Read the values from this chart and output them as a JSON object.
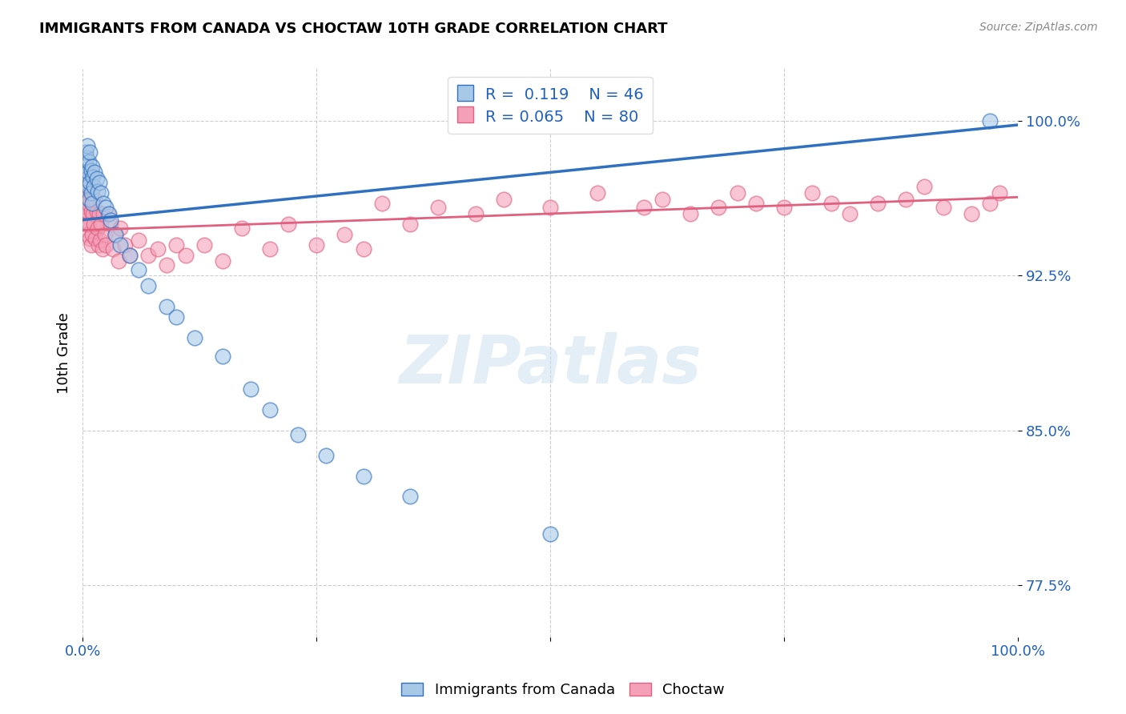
{
  "title": "IMMIGRANTS FROM CANADA VS CHOCTAW 10TH GRADE CORRELATION CHART",
  "source": "Source: ZipAtlas.com",
  "ylabel": "10th Grade",
  "legend_blue_label": "Immigrants from Canada",
  "legend_pink_label": "Choctaw",
  "R_blue": 0.119,
  "N_blue": 46,
  "R_pink": 0.065,
  "N_pink": 80,
  "blue_color": "#a8c8e8",
  "pink_color": "#f4a0b8",
  "blue_line_color": "#3070c0",
  "pink_line_color": "#e06080",
  "background_color": "#ffffff",
  "watermark_text": "ZIPatlas",
  "blue_scatter_x": [
    0.001,
    0.002,
    0.003,
    0.003,
    0.004,
    0.004,
    0.005,
    0.005,
    0.006,
    0.006,
    0.007,
    0.007,
    0.008,
    0.008,
    0.009,
    0.009,
    0.01,
    0.01,
    0.011,
    0.012,
    0.013,
    0.015,
    0.016,
    0.018,
    0.02,
    0.022,
    0.025,
    0.028,
    0.03,
    0.035,
    0.04,
    0.05,
    0.06,
    0.07,
    0.09,
    0.1,
    0.12,
    0.15,
    0.18,
    0.2,
    0.23,
    0.26,
    0.3,
    0.35,
    0.5,
    0.97
  ],
  "blue_scatter_y": [
    0.98,
    0.975,
    0.985,
    0.97,
    0.978,
    0.982,
    0.988,
    0.972,
    0.975,
    0.968,
    0.98,
    0.962,
    0.985,
    0.97,
    0.976,
    0.965,
    0.978,
    0.96,
    0.973,
    0.968,
    0.975,
    0.972,
    0.966,
    0.97,
    0.965,
    0.96,
    0.958,
    0.955,
    0.952,
    0.945,
    0.94,
    0.935,
    0.928,
    0.92,
    0.91,
    0.905,
    0.895,
    0.886,
    0.87,
    0.86,
    0.848,
    0.838,
    0.828,
    0.818,
    0.8,
    1.0
  ],
  "pink_scatter_x": [
    0.001,
    0.001,
    0.002,
    0.002,
    0.003,
    0.003,
    0.004,
    0.004,
    0.005,
    0.005,
    0.006,
    0.006,
    0.007,
    0.007,
    0.008,
    0.008,
    0.009,
    0.009,
    0.01,
    0.01,
    0.011,
    0.012,
    0.013,
    0.014,
    0.015,
    0.016,
    0.017,
    0.018,
    0.019,
    0.02,
    0.021,
    0.022,
    0.024,
    0.025,
    0.027,
    0.03,
    0.032,
    0.035,
    0.038,
    0.04,
    0.045,
    0.05,
    0.06,
    0.07,
    0.08,
    0.09,
    0.1,
    0.11,
    0.13,
    0.15,
    0.17,
    0.2,
    0.22,
    0.25,
    0.28,
    0.3,
    0.32,
    0.35,
    0.38,
    0.42,
    0.45,
    0.5,
    0.55,
    0.6,
    0.62,
    0.65,
    0.68,
    0.7,
    0.72,
    0.75,
    0.78,
    0.8,
    0.82,
    0.85,
    0.88,
    0.9,
    0.92,
    0.95,
    0.97,
    0.98
  ],
  "pink_scatter_y": [
    0.975,
    0.96,
    0.97,
    0.955,
    0.968,
    0.952,
    0.965,
    0.95,
    0.972,
    0.956,
    0.96,
    0.945,
    0.968,
    0.95,
    0.962,
    0.943,
    0.956,
    0.94,
    0.962,
    0.945,
    0.955,
    0.95,
    0.962,
    0.943,
    0.956,
    0.948,
    0.94,
    0.955,
    0.942,
    0.95,
    0.938,
    0.955,
    0.945,
    0.94,
    0.955,
    0.95,
    0.938,
    0.945,
    0.932,
    0.948,
    0.94,
    0.935,
    0.942,
    0.935,
    0.938,
    0.93,
    0.94,
    0.935,
    0.94,
    0.932,
    0.948,
    0.938,
    0.95,
    0.94,
    0.945,
    0.938,
    0.96,
    0.95,
    0.958,
    0.955,
    0.962,
    0.958,
    0.965,
    0.958,
    0.962,
    0.955,
    0.958,
    0.965,
    0.96,
    0.958,
    0.965,
    0.96,
    0.955,
    0.96,
    0.962,
    0.968,
    0.958,
    0.955,
    0.96,
    0.965
  ],
  "xlim": [
    0.0,
    1.0
  ],
  "ylim": [
    0.75,
    1.025
  ],
  "blue_trend_x": [
    0.0,
    1.0
  ],
  "blue_trend_y": [
    0.952,
    0.998
  ],
  "pink_trend_x": [
    0.0,
    1.0
  ],
  "pink_trend_y": [
    0.947,
    0.963
  ],
  "ytick_values": [
    1.0,
    0.925,
    0.85,
    0.775
  ],
  "ytick_labels": [
    "100.0%",
    "92.5%",
    "85.0%",
    "77.5%"
  ]
}
